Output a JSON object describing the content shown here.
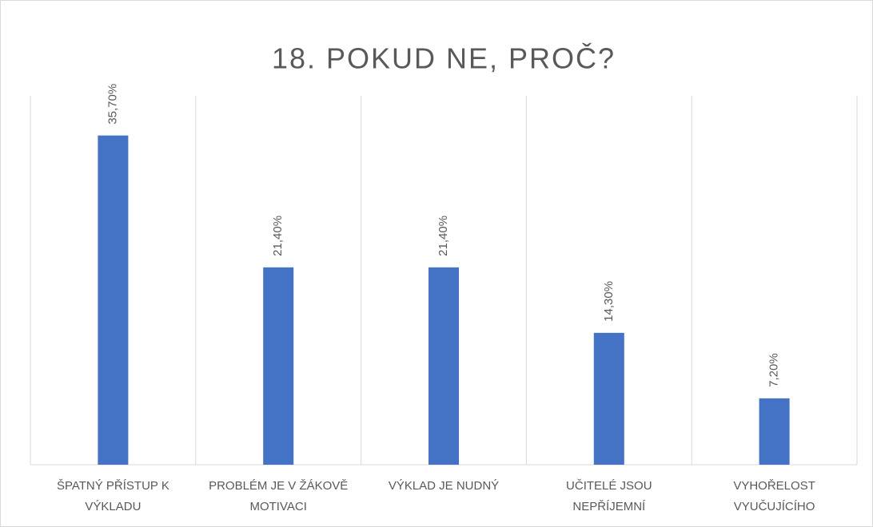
{
  "chart_data": {
    "type": "bar",
    "title": "18. POKUD NE, PROČ?",
    "categories": [
      "ŠPATNÝ PŘÍSTUP K VÝKLADU",
      "PROBLÉM JE V ŽÁKOVĚ MOTIVACI",
      "VÝKLAD JE NUDNÝ",
      "UČITELÉ JSOU NEPŘÍJEMNÍ",
      "VYHOŘELOST VYUČUJÍCÍHO"
    ],
    "values": [
      35.7,
      21.4,
      21.4,
      14.3,
      7.2
    ],
    "value_labels": [
      "35,70%",
      "21,40%",
      "21,40%",
      "14,30%",
      "7,20%"
    ],
    "color": "#4472c4",
    "ylim": [
      0,
      40
    ]
  }
}
